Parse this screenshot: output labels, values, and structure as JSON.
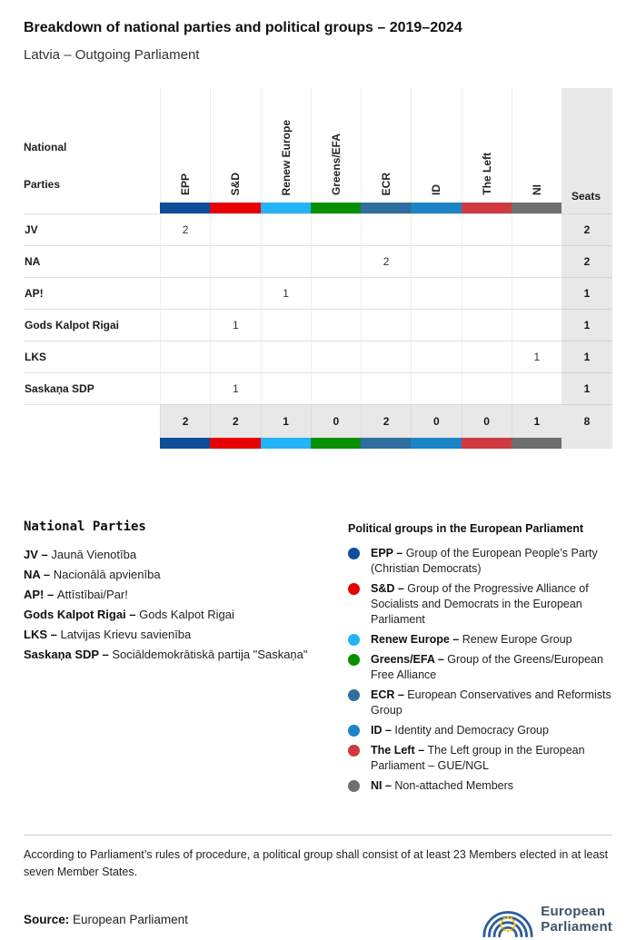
{
  "header": {
    "title": "Breakdown of national parties and political groups – 2019–2024",
    "subtitle": "Latvia – Outgoing Parliament"
  },
  "table": {
    "row_header_line1": "National",
    "row_header_line2": "Parties",
    "seats_label": "Seats",
    "groups": [
      {
        "id": "epp",
        "label": "EPP",
        "color": "#0f4d9a"
      },
      {
        "id": "sd",
        "label": "S&D",
        "color": "#e80000"
      },
      {
        "id": "renew",
        "label": "Renew Europe",
        "color": "#23b3f8"
      },
      {
        "id": "greens-efa",
        "label": "Greens/EFA",
        "color": "#089000"
      },
      {
        "id": "ecr",
        "label": "ECR",
        "color": "#2f6e9e"
      },
      {
        "id": "id",
        "label": "ID",
        "color": "#1b84c6"
      },
      {
        "id": "the-left",
        "label": "The Left",
        "color": "#d0393f"
      },
      {
        "id": "ni",
        "label": "NI",
        "color": "#6f6f6f"
      }
    ],
    "rows": [
      {
        "party": "JV",
        "values": [
          "2",
          "",
          "",
          "",
          "",
          "",
          "",
          ""
        ],
        "seats": "2"
      },
      {
        "party": "NA",
        "values": [
          "",
          "",
          "",
          "",
          "2",
          "",
          "",
          ""
        ],
        "seats": "2"
      },
      {
        "party": "AP!",
        "values": [
          "",
          "",
          "1",
          "",
          "",
          "",
          "",
          ""
        ],
        "seats": "1"
      },
      {
        "party": "Gods Kalpot Rigai",
        "values": [
          "",
          "1",
          "",
          "",
          "",
          "",
          "",
          ""
        ],
        "seats": "1"
      },
      {
        "party": "LKS",
        "values": [
          "",
          "",
          "",
          "",
          "",
          "",
          "",
          "1"
        ],
        "seats": "1"
      },
      {
        "party": "Saskaņa SDP",
        "values": [
          "",
          "1",
          "",
          "",
          "",
          "",
          "",
          ""
        ],
        "seats": "1"
      }
    ],
    "totals": {
      "values": [
        "2",
        "2",
        "1",
        "0",
        "2",
        "0",
        "0",
        "1"
      ],
      "seats": "8"
    }
  },
  "chart_data": {
    "type": "table",
    "title": "Breakdown of national parties and political groups – 2019–2024",
    "subtitle": "Latvia – Outgoing Parliament",
    "columns": [
      "EPP",
      "S&D",
      "Renew Europe",
      "Greens/EFA",
      "ECR",
      "ID",
      "The Left",
      "NI",
      "Seats"
    ],
    "seats_by_party": [
      {
        "party": "JV",
        "group": "EPP",
        "seats": 2
      },
      {
        "party": "NA",
        "group": "ECR",
        "seats": 2
      },
      {
        "party": "AP!",
        "group": "Renew Europe",
        "seats": 1
      },
      {
        "party": "Gods Kalpot Rigai",
        "group": "S&D",
        "seats": 1
      },
      {
        "party": "LKS",
        "group": "NI",
        "seats": 1
      },
      {
        "party": "Saskaņa SDP",
        "group": "S&D",
        "seats": 1
      }
    ],
    "totals_by_group": {
      "EPP": 2,
      "S&D": 2,
      "Renew Europe": 1,
      "Greens/EFA": 0,
      "ECR": 2,
      "ID": 0,
      "The Left": 0,
      "NI": 1
    },
    "total_seats": 8
  },
  "legend_parties": {
    "title": "National Parties",
    "separator": "–",
    "items": [
      {
        "abbr": "JV",
        "name": "Jaunā Vienotība"
      },
      {
        "abbr": "NA",
        "name": "Nacionālā apvienība"
      },
      {
        "abbr": "AP!",
        "name": "Attīstībai/Par!"
      },
      {
        "abbr": "Gods Kalpot Rigai",
        "name": "Gods Kalpot Rigai"
      },
      {
        "abbr": "LKS",
        "name": "Latvijas Krievu savienība"
      },
      {
        "abbr": "Saskaņa SDP",
        "name": "Sociāldemokrātiskā partija \"Saskaņa\""
      }
    ]
  },
  "legend_groups": {
    "title": "Political groups in the European Parliament",
    "separator": "–",
    "items": [
      {
        "id": "epp",
        "abbr": "EPP",
        "desc": "Group of the European People’s Party (Christian Democrats)",
        "color": "#0f4d9a"
      },
      {
        "id": "sd",
        "abbr": "S&D",
        "desc": "Group of the Progressive Alliance of Socialists and Democrats in the European Parliament",
        "color": "#e80000"
      },
      {
        "id": "renew",
        "abbr": "Renew Europe",
        "desc": "Renew Europe Group",
        "color": "#23b3f8"
      },
      {
        "id": "greens-efa",
        "abbr": "Greens/EFA",
        "desc": "Group of the Greens/European Free Alliance",
        "color": "#089000"
      },
      {
        "id": "ecr",
        "abbr": "ECR",
        "desc": "European Conservatives and Reformists Group",
        "color": "#2f6e9e"
      },
      {
        "id": "id",
        "abbr": "ID",
        "desc": "Identity and Democracy Group",
        "color": "#1b84c6"
      },
      {
        "id": "the-left",
        "abbr": "The Left",
        "desc": "The Left group in the European Parliament – GUE/NGL",
        "color": "#d0393f"
      },
      {
        "id": "ni",
        "abbr": "NI",
        "desc": "Non-attached Members",
        "color": "#6f6f6f"
      }
    ]
  },
  "footnote": "According to Parliament’s rules of procedure, a political group shall consist of at least 23 Members elected in at least seven Member States.",
  "source": {
    "label": "Source:",
    "value": "European Parliament"
  },
  "logo": {
    "line1": "European",
    "line2": "Parliament",
    "mark_color": "#2e5c9e",
    "star_color": "#f0c400",
    "text_color": "#3d5468"
  }
}
